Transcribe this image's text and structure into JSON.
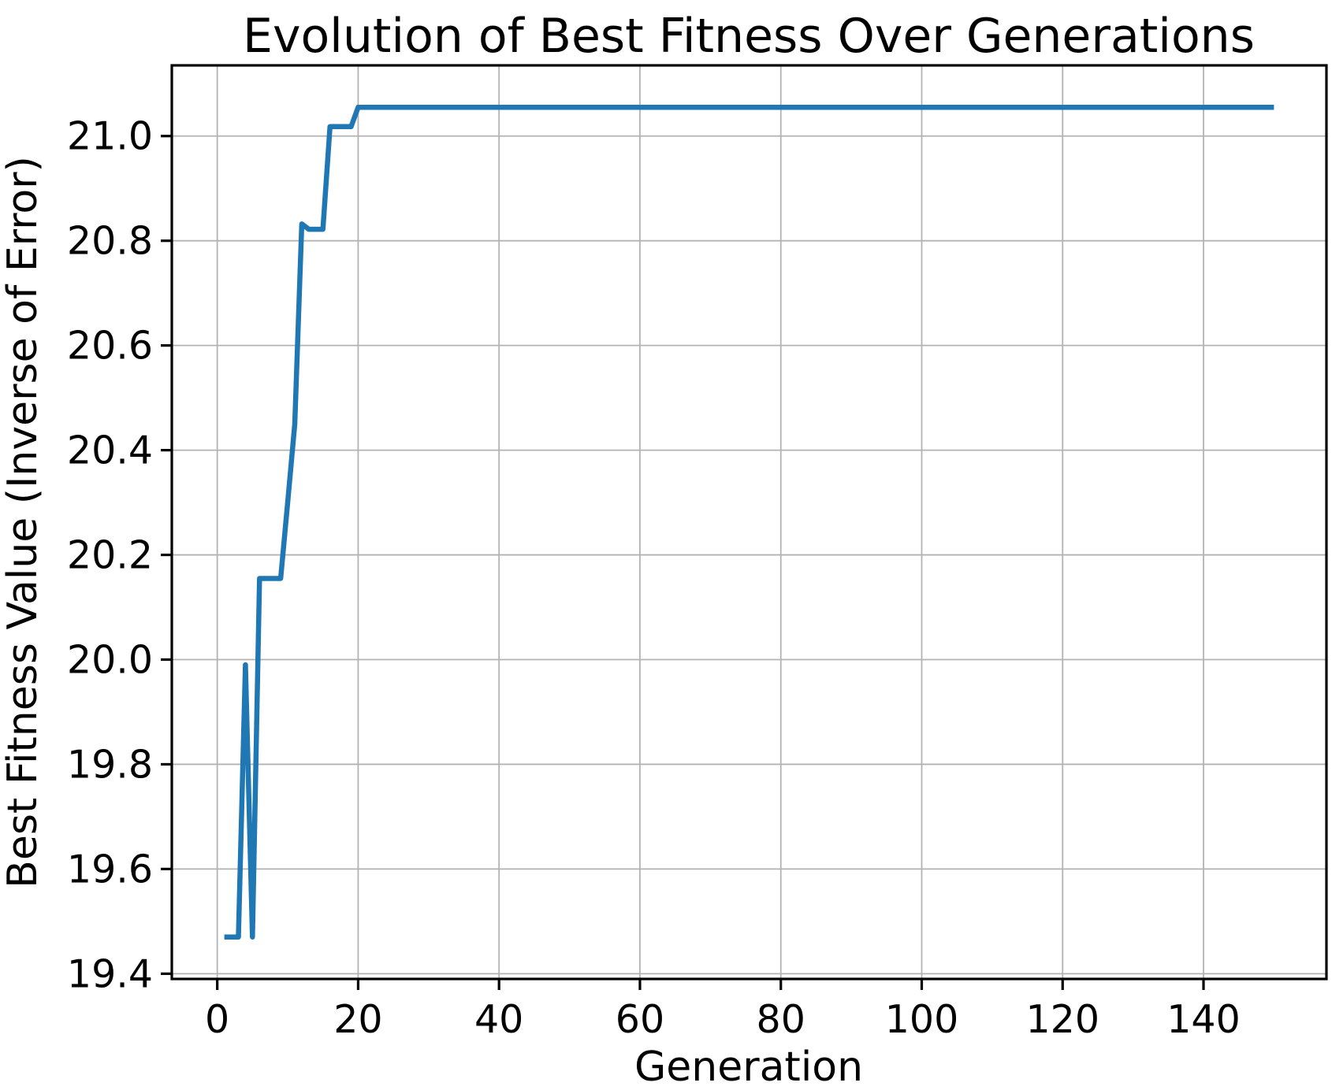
{
  "figure": {
    "title": "Evolution of Best Fitness Over Generations"
  },
  "chart_data": {
    "type": "line",
    "title": "Evolution of Best Fitness Over Generations",
    "xlabel": "Generation",
    "ylabel": "Best Fitness Value (Inverse of Error)",
    "xlim": [
      -6.45,
      157.45
    ],
    "ylim": [
      19.39,
      21.135
    ],
    "xticks": [
      0,
      20,
      40,
      60,
      80,
      100,
      120,
      140
    ],
    "yticks": [
      19.4,
      19.6,
      19.8,
      20.0,
      20.2,
      20.4,
      20.6,
      20.8,
      21.0
    ],
    "grid": true,
    "legend_position": "none",
    "series": [
      {
        "name": "Best Fitness",
        "color": "#1f77b4",
        "points": [
          [
            1,
            19.47
          ],
          [
            3,
            19.47
          ],
          [
            4,
            19.99
          ],
          [
            5,
            19.47
          ],
          [
            6,
            20.155
          ],
          [
            9,
            20.155
          ],
          [
            10,
            20.3
          ],
          [
            11,
            20.45
          ],
          [
            12,
            20.832
          ],
          [
            13,
            20.822
          ],
          [
            15,
            20.822
          ],
          [
            16,
            21.018
          ],
          [
            19,
            21.018
          ],
          [
            20,
            21.055
          ],
          [
            150,
            21.055
          ]
        ]
      }
    ]
  },
  "colors": {
    "line": "#1f77b4",
    "grid": "#b3b3b3",
    "spine": "#000000",
    "tick": "#000000",
    "background": "#ffffff"
  }
}
